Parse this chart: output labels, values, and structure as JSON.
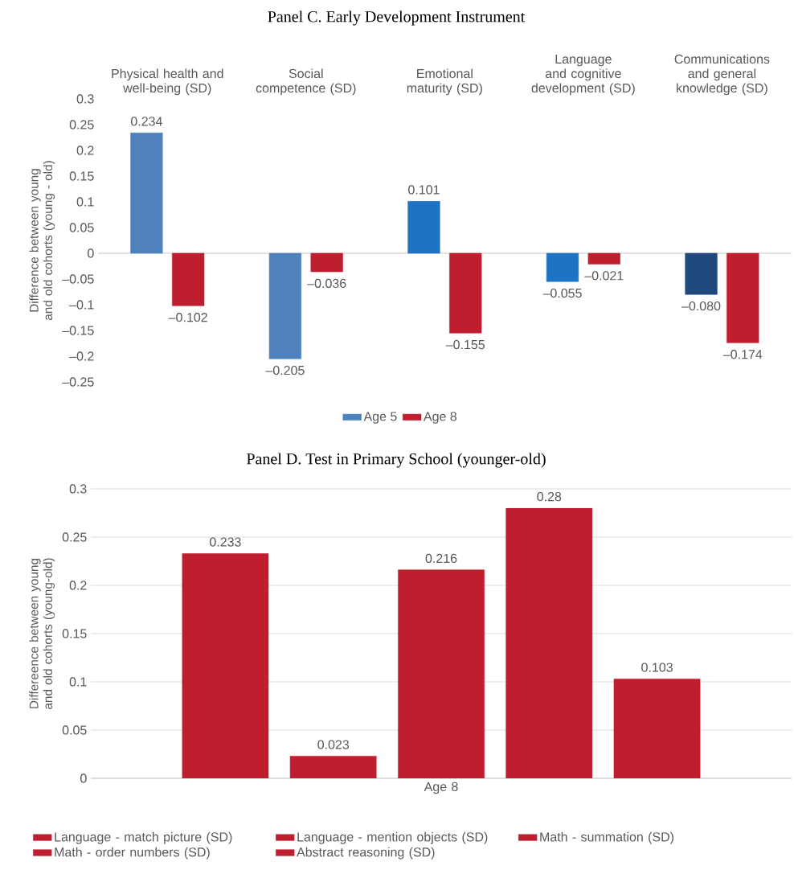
{
  "chart_data": [
    {
      "type": "bar",
      "title": "Panel C. Early Development Instrument",
      "ylabel": "Difference between young and old cohorts (young - old)",
      "categories": [
        "Physical health and well-being (SD)",
        "Social competence (SD)",
        "Emotional maturity (SD)",
        "Language and cognitive development (SD)",
        "Communications and general knowledge (SD)"
      ],
      "series": [
        {
          "name": "Age 5",
          "color": "#4f81bd",
          "colors": [
            "#4f81bd",
            "#4f81bd",
            "#1f73c4",
            "#1f73c4",
            "#1f497d"
          ],
          "values": [
            0.234,
            -0.205,
            0.101,
            -0.055,
            -0.08
          ],
          "value_labels": [
            "0.234",
            "–0.205",
            "0.101",
            "–0.055",
            "–0.080"
          ]
        },
        {
          "name": "Age 8",
          "color": "#be1e2d",
          "values": [
            -0.102,
            -0.036,
            -0.155,
            -0.021,
            -0.174
          ],
          "value_labels": [
            "–0.102",
            "–0.036",
            "–0.155",
            "–0.021",
            "–0.174"
          ]
        }
      ],
      "ylim": [
        -0.25,
        0.3
      ],
      "yticks": [
        0.3,
        0.25,
        0.2,
        0.15,
        0.1,
        0.05,
        0,
        {
          "value": -0.05,
          "label": "–0.05"
        },
        {
          "value": -0.1,
          "label": "–0.1"
        },
        {
          "value": -0.15,
          "label": "–0.15"
        },
        {
          "value": -0.2,
          "label": "–0.2"
        },
        {
          "value": -0.25,
          "label": "–0.25"
        }
      ],
      "legend": "bottom"
    },
    {
      "type": "bar",
      "title": "Panel D. Test in Primary School (younger-old)",
      "ylabel": "Differeence between young and old cohorts (young-old)",
      "categories": [
        "Age 8"
      ],
      "series": [
        {
          "name": "Language - match picture (SD)",
          "color": "#be1e2d",
          "values": [
            0.233
          ]
        },
        {
          "name": "Language - mention objects (SD)",
          "color": "#be1e2d",
          "values": [
            0.023
          ]
        },
        {
          "name": "Math - summation (SD)",
          "color": "#be1e2d",
          "values": [
            0.216
          ]
        },
        {
          "name": "Math - order numbers (SD)",
          "color": "#be1e2d",
          "values": [
            0.28
          ]
        },
        {
          "name": "Abstract reasoning (SD)",
          "color": "#be1e2d",
          "values": [
            0.103
          ]
        }
      ],
      "ylim": [
        0,
        0.3
      ],
      "yticks": [
        0,
        0.05,
        0.1,
        0.15,
        0.2,
        0.25,
        0.3
      ],
      "grid": "y",
      "legend": "bottom",
      "data_labels": true
    }
  ]
}
